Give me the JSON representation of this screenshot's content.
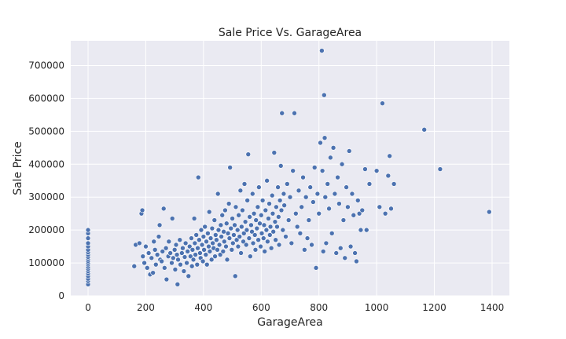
{
  "chart_data": {
    "type": "scatter",
    "title": "Sale Price Vs. GarageArea",
    "xlabel": "GarageArea",
    "ylabel": "Sale Price",
    "xlim": [
      -60,
      1460
    ],
    "ylim": [
      0,
      775000
    ],
    "xticks": [
      0,
      200,
      400,
      600,
      800,
      1000,
      1200,
      1400
    ],
    "yticks": [
      0,
      100000,
      200000,
      300000,
      400000,
      500000,
      600000,
      700000
    ],
    "xtick_labels": [
      "0",
      "200",
      "400",
      "600",
      "800",
      "1000",
      "1200",
      "1400"
    ],
    "ytick_labels": [
      "0",
      "100000",
      "200000",
      "300000",
      "400000",
      "500000",
      "600000",
      "700000"
    ],
    "grid": true,
    "legend": "none",
    "colors": {
      "background": "#eaeaf2",
      "grid": "#ffffff",
      "marker": "#4c72b0",
      "marker_edge": "#ffffff"
    },
    "points": [
      [
        0,
        35000
      ],
      [
        0,
        45000
      ],
      [
        0,
        52000
      ],
      [
        0,
        60000
      ],
      [
        0,
        68000
      ],
      [
        0,
        75000
      ],
      [
        0,
        82000
      ],
      [
        0,
        88000
      ],
      [
        0,
        95000
      ],
      [
        0,
        100000
      ],
      [
        0,
        106000
      ],
      [
        0,
        112000
      ],
      [
        0,
        118000
      ],
      [
        0,
        125000
      ],
      [
        0,
        132000
      ],
      [
        0,
        140000
      ],
      [
        0,
        150000
      ],
      [
        0,
        160000
      ],
      [
        0,
        175000
      ],
      [
        0,
        190000
      ],
      [
        0,
        200000
      ],
      [
        160,
        90000
      ],
      [
        165,
        155000
      ],
      [
        178,
        160000
      ],
      [
        185,
        250000
      ],
      [
        188,
        260000
      ],
      [
        190,
        120000
      ],
      [
        195,
        100000
      ],
      [
        200,
        150000
      ],
      [
        205,
        85000
      ],
      [
        210,
        130000
      ],
      [
        215,
        65000
      ],
      [
        220,
        115000
      ],
      [
        225,
        70000
      ],
      [
        228,
        165000
      ],
      [
        232,
        140000
      ],
      [
        235,
        95000
      ],
      [
        240,
        125000
      ],
      [
        245,
        180000
      ],
      [
        248,
        215000
      ],
      [
        250,
        110000
      ],
      [
        255,
        105000
      ],
      [
        258,
        135000
      ],
      [
        262,
        265000
      ],
      [
        265,
        85000
      ],
      [
        270,
        145000
      ],
      [
        272,
        50000
      ],
      [
        278,
        120000
      ],
      [
        280,
        165000
      ],
      [
        285,
        130000
      ],
      [
        290,
        100000
      ],
      [
        292,
        235000
      ],
      [
        295,
        115000
      ],
      [
        300,
        140000
      ],
      [
        302,
        80000
      ],
      [
        305,
        155000
      ],
      [
        308,
        125000
      ],
      [
        310,
        35000
      ],
      [
        312,
        110000
      ],
      [
        318,
        170000
      ],
      [
        320,
        95000
      ],
      [
        325,
        130000
      ],
      [
        328,
        145000
      ],
      [
        332,
        75000
      ],
      [
        335,
        118000
      ],
      [
        338,
        160000
      ],
      [
        342,
        100000
      ],
      [
        345,
        135000
      ],
      [
        348,
        60000
      ],
      [
        352,
        150000
      ],
      [
        355,
        120000
      ],
      [
        358,
        175000
      ],
      [
        360,
        90000
      ],
      [
        362,
        140000
      ],
      [
        365,
        110000
      ],
      [
        368,
        235000
      ],
      [
        370,
        160000
      ],
      [
        372,
        125000
      ],
      [
        375,
        185000
      ],
      [
        378,
        95000
      ],
      [
        380,
        145000
      ],
      [
        382,
        360000
      ],
      [
        385,
        170000
      ],
      [
        388,
        130000
      ],
      [
        390,
        115000
      ],
      [
        392,
        200000
      ],
      [
        395,
        155000
      ],
      [
        398,
        105000
      ],
      [
        400,
        180000
      ],
      [
        402,
        140000
      ],
      [
        405,
        210000
      ],
      [
        408,
        125000
      ],
      [
        410,
        165000
      ],
      [
        412,
        95000
      ],
      [
        415,
        190000
      ],
      [
        418,
        150000
      ],
      [
        420,
        255000
      ],
      [
        422,
        135000
      ],
      [
        425,
        175000
      ],
      [
        428,
        110000
      ],
      [
        430,
        205000
      ],
      [
        432,
        160000
      ],
      [
        435,
        145000
      ],
      [
        438,
        230000
      ],
      [
        440,
        120000
      ],
      [
        442,
        185000
      ],
      [
        445,
        170000
      ],
      [
        448,
        140000
      ],
      [
        450,
        310000
      ],
      [
        452,
        200000
      ],
      [
        455,
        155000
      ],
      [
        458,
        125000
      ],
      [
        460,
        215000
      ],
      [
        462,
        180000
      ],
      [
        465,
        245000
      ],
      [
        468,
        135000
      ],
      [
        470,
        195000
      ],
      [
        472,
        165000
      ],
      [
        475,
        260000
      ],
      [
        478,
        150000
      ],
      [
        480,
        220000
      ],
      [
        482,
        110000
      ],
      [
        485,
        190000
      ],
      [
        488,
        280000
      ],
      [
        490,
        175000
      ],
      [
        492,
        390000
      ],
      [
        495,
        205000
      ],
      [
        498,
        140000
      ],
      [
        500,
        235000
      ],
      [
        502,
        160000
      ],
      [
        505,
        185000
      ],
      [
        508,
        215000
      ],
      [
        510,
        60000
      ],
      [
        512,
        270000
      ],
      [
        515,
        170000
      ],
      [
        518,
        200000
      ],
      [
        520,
        150000
      ],
      [
        522,
        245000
      ],
      [
        525,
        180000
      ],
      [
        528,
        320000
      ],
      [
        530,
        130000
      ],
      [
        532,
        210000
      ],
      [
        535,
        260000
      ],
      [
        538,
        165000
      ],
      [
        540,
        190000
      ],
      [
        542,
        340000
      ],
      [
        545,
        225000
      ],
      [
        548,
        155000
      ],
      [
        550,
        200000
      ],
      [
        552,
        290000
      ],
      [
        555,
        430000
      ],
      [
        558,
        175000
      ],
      [
        560,
        240000
      ],
      [
        562,
        120000
      ],
      [
        565,
        215000
      ],
      [
        568,
        195000
      ],
      [
        570,
        310000
      ],
      [
        572,
        160000
      ],
      [
        575,
        250000
      ],
      [
        578,
        185000
      ],
      [
        580,
        140000
      ],
      [
        582,
        230000
      ],
      [
        585,
        205000
      ],
      [
        588,
        270000
      ],
      [
        590,
        170000
      ],
      [
        592,
        330000
      ],
      [
        595,
        220000
      ],
      [
        598,
        150000
      ],
      [
        600,
        245000
      ],
      [
        602,
        190000
      ],
      [
        605,
        290000
      ],
      [
        608,
        175000
      ],
      [
        610,
        215000
      ],
      [
        612,
        135000
      ],
      [
        615,
        260000
      ],
      [
        618,
        200000
      ],
      [
        620,
        350000
      ],
      [
        622,
        165000
      ],
      [
        625,
        235000
      ],
      [
        628,
        280000
      ],
      [
        630,
        185000
      ],
      [
        632,
        210000
      ],
      [
        635,
        145000
      ],
      [
        638,
        305000
      ],
      [
        640,
        250000
      ],
      [
        642,
        195000
      ],
      [
        645,
        435000
      ],
      [
        648,
        225000
      ],
      [
        650,
        170000
      ],
      [
        652,
        270000
      ],
      [
        655,
        210000
      ],
      [
        658,
        330000
      ],
      [
        660,
        240000
      ],
      [
        662,
        155000
      ],
      [
        665,
        290000
      ],
      [
        668,
        395000
      ],
      [
        670,
        260000
      ],
      [
        672,
        555000
      ],
      [
        675,
        200000
      ],
      [
        678,
        310000
      ],
      [
        680,
        275000
      ],
      [
        685,
        180000
      ],
      [
        690,
        340000
      ],
      [
        695,
        230000
      ],
      [
        700,
        300000
      ],
      [
        705,
        160000
      ],
      [
        710,
        380000
      ],
      [
        715,
        555000
      ],
      [
        720,
        250000
      ],
      [
        725,
        210000
      ],
      [
        730,
        320000
      ],
      [
        735,
        190000
      ],
      [
        740,
        270000
      ],
      [
        745,
        360000
      ],
      [
        750,
        140000
      ],
      [
        755,
        300000
      ],
      [
        760,
        175000
      ],
      [
        765,
        230000
      ],
      [
        770,
        330000
      ],
      [
        775,
        155000
      ],
      [
        780,
        285000
      ],
      [
        785,
        390000
      ],
      [
        790,
        85000
      ],
      [
        795,
        310000
      ],
      [
        800,
        250000
      ],
      [
        805,
        465000
      ],
      [
        810,
        745000
      ],
      [
        812,
        380000
      ],
      [
        815,
        135000
      ],
      [
        818,
        610000
      ],
      [
        820,
        480000
      ],
      [
        822,
        300000
      ],
      [
        825,
        160000
      ],
      [
        830,
        340000
      ],
      [
        835,
        265000
      ],
      [
        840,
        420000
      ],
      [
        845,
        190000
      ],
      [
        850,
        450000
      ],
      [
        855,
        310000
      ],
      [
        860,
        130000
      ],
      [
        865,
        360000
      ],
      [
        870,
        280000
      ],
      [
        875,
        145000
      ],
      [
        880,
        400000
      ],
      [
        885,
        230000
      ],
      [
        890,
        115000
      ],
      [
        895,
        330000
      ],
      [
        900,
        270000
      ],
      [
        905,
        440000
      ],
      [
        910,
        150000
      ],
      [
        915,
        310000
      ],
      [
        920,
        245000
      ],
      [
        925,
        130000
      ],
      [
        930,
        105000
      ],
      [
        935,
        290000
      ],
      [
        940,
        250000
      ],
      [
        945,
        200000
      ],
      [
        950,
        260000
      ],
      [
        960,
        385000
      ],
      [
        965,
        200000
      ],
      [
        975,
        340000
      ],
      [
        1000,
        380000
      ],
      [
        1010,
        270000
      ],
      [
        1020,
        585000
      ],
      [
        1030,
        250000
      ],
      [
        1040,
        365000
      ],
      [
        1045,
        425000
      ],
      [
        1050,
        265000
      ],
      [
        1060,
        340000
      ],
      [
        1165,
        505000
      ],
      [
        1220,
        385000
      ],
      [
        1390,
        255000
      ]
    ]
  }
}
